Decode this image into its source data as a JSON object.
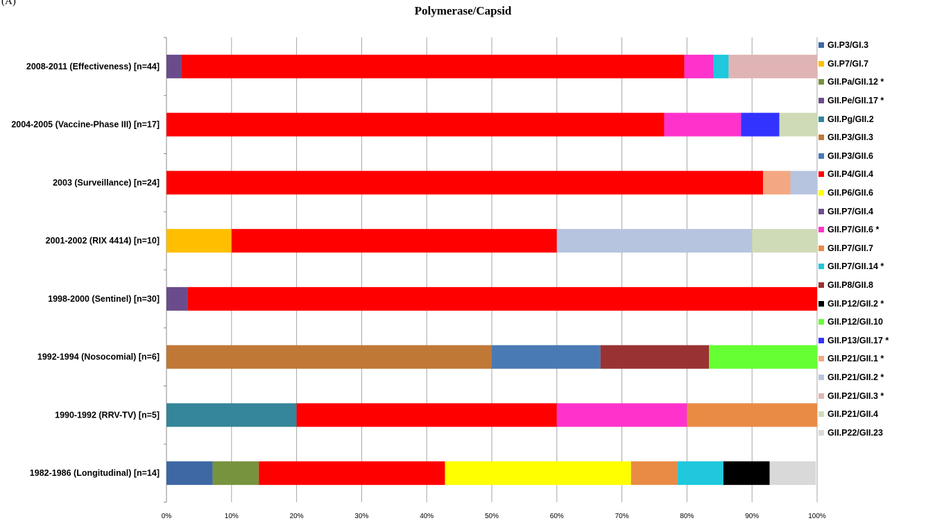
{
  "panel_label": "(A)",
  "chart_data": {
    "type": "bar",
    "orientation": "horizontal",
    "stacked": true,
    "percent": true,
    "title": "Polymerase/Capsid",
    "xlabel": "",
    "ylabel": "",
    "xlim": [
      0,
      100
    ],
    "xticks": [
      "0%",
      "10%",
      "20%",
      "30%",
      "40%",
      "50%",
      "60%",
      "70%",
      "80%",
      "90%",
      "100%"
    ],
    "grid": "vertical",
    "legend_position": "right",
    "categories": [
      "2008-2011 (Effectiveness) [n=44]",
      "2004-2005 (Vaccine-Phase III) [n=17]",
      "2003 (Surveillance)  [n=24]",
      "2001-2002 (RIX 4414) [n=10]",
      "1998-2000 (Sentinel) [n=30]",
      "1992-1994 (Nosocomial) [n=6]",
      "1990-1992 (RRV-TV) [n=5]",
      "1982-1986 (Longitudinal) [n=14]"
    ],
    "series": [
      {
        "name": "GI.P3/GI.3",
        "color": "#3d68a4",
        "values": [
          0,
          0,
          0,
          0,
          0,
          0,
          0,
          7.1
        ]
      },
      {
        "name": "GI.P7/GI.7",
        "color": "#ffbf00",
        "values": [
          0,
          0,
          0,
          10,
          0,
          0,
          0,
          0
        ]
      },
      {
        "name": "GII.Pa/GII.12 *",
        "color": "#78933e",
        "values": [
          0,
          0,
          0,
          0,
          0,
          0,
          0,
          7.1
        ]
      },
      {
        "name": "GII.Pe/GII.17 *",
        "color": "#6a4c8c",
        "values": [
          2.3,
          0,
          0,
          0,
          3.3,
          0,
          0,
          0
        ]
      },
      {
        "name": "GII.Pg/GII.2",
        "color": "#35869a",
        "values": [
          0,
          0,
          0,
          0,
          0,
          0,
          20,
          0
        ]
      },
      {
        "name": "GII.P3/GII.3",
        "color": "#c07836",
        "values": [
          0,
          0,
          0,
          0,
          0,
          50,
          0,
          0
        ]
      },
      {
        "name": "GII.P3/GII.6",
        "color": "#4a7ab4",
        "values": [
          0,
          0,
          0,
          0,
          0,
          16.7,
          0,
          0
        ]
      },
      {
        "name": "GII.P4/GII.4",
        "color": "#ff0000",
        "values": [
          77.3,
          76.5,
          91.7,
          50,
          96.7,
          0,
          40,
          28.6
        ]
      },
      {
        "name": "GII.P6/GII.6",
        "color": "#ffff00",
        "values": [
          0,
          0,
          0,
          0,
          0,
          0,
          0,
          28.6
        ]
      },
      {
        "name": "GII.P7/GII.4",
        "color": "#6b4f8e",
        "values": [
          0,
          0,
          0,
          0,
          0,
          0,
          0,
          0
        ]
      },
      {
        "name": "GII.P7/GII.6 *",
        "color": "#ff33cc",
        "values": [
          4.5,
          11.8,
          0,
          0,
          0,
          0,
          20,
          0
        ]
      },
      {
        "name": "GII.P7/GII.7",
        "color": "#e98b45",
        "values": [
          0,
          0,
          0,
          0,
          0,
          0,
          20,
          7.1
        ]
      },
      {
        "name": "GII.P7/GII.14 *",
        "color": "#1fc8dc",
        "values": [
          2.3,
          0,
          0,
          0,
          0,
          0,
          0,
          7.1
        ]
      },
      {
        "name": "GII.P8/GII.8",
        "color": "#993333",
        "values": [
          0,
          0,
          0,
          0,
          0,
          16.7,
          0,
          0
        ]
      },
      {
        "name": "GII.P12/GII.2 *",
        "color": "#000000",
        "values": [
          0,
          0,
          0,
          0,
          0,
          0,
          0,
          7.1
        ]
      },
      {
        "name": "GII.P12/GII.10",
        "color": "#66ff33",
        "values": [
          0,
          0,
          0,
          0,
          0,
          16.7,
          0,
          0
        ]
      },
      {
        "name": "GII.P13/GII.17 *",
        "color": "#3333ff",
        "values": [
          0,
          5.9,
          0,
          0,
          0,
          0,
          0,
          0
        ]
      },
      {
        "name": "GII.P21/GII.1 *",
        "color": "#f4a882",
        "values": [
          0,
          0,
          4.2,
          0,
          0,
          0,
          0,
          0
        ]
      },
      {
        "name": "GII.P21/GII.2 *",
        "color": "#b7c4e0",
        "values": [
          0,
          0,
          4.2,
          30,
          0,
          0,
          0,
          0
        ]
      },
      {
        "name": "GII.P21/GII.3 *",
        "color": "#e0b4b4",
        "values": [
          13.6,
          0,
          0,
          0,
          0,
          0,
          0,
          0
        ]
      },
      {
        "name": "GII.P21/GII.4",
        "color": "#cfdbb7",
        "values": [
          0,
          5.9,
          0,
          10,
          0,
          0,
          0,
          0
        ]
      },
      {
        "name": "GII.P22/GII.23",
        "color": "#d9d9d9",
        "values": [
          0,
          0,
          0,
          0,
          0,
          0,
          0,
          7.1
        ]
      }
    ]
  }
}
